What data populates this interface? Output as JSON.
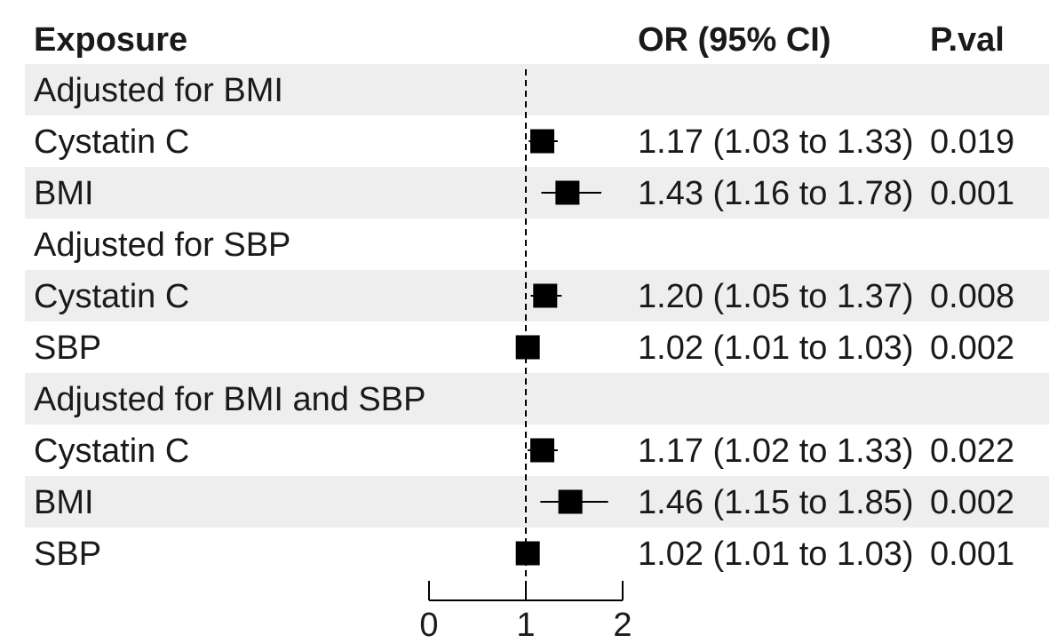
{
  "chart_data": {
    "type": "forest",
    "header": {
      "exposure": "Exposure",
      "or_ci": "OR (95% CI)",
      "pval": "P.val"
    },
    "reference_line": 1,
    "xlim": [
      0,
      2
    ],
    "x_ticks": [
      "0",
      "1",
      "2"
    ],
    "x_tick_values": [
      0,
      1,
      2
    ],
    "colors": {
      "stripe": "#eeeeee",
      "marker": "#000000",
      "text": "#1a1a1a"
    },
    "rows": [
      {
        "label": "Adjusted for BMI",
        "group": true,
        "stripe": true
      },
      {
        "label": "Cystatin C",
        "group": false,
        "stripe": false,
        "or": 1.17,
        "lo": 1.03,
        "hi": 1.33,
        "ci_text": "1.17 (1.03 to 1.33)",
        "pval": "0.019"
      },
      {
        "label": "BMI",
        "group": false,
        "stripe": true,
        "or": 1.43,
        "lo": 1.16,
        "hi": 1.78,
        "ci_text": "1.43 (1.16 to 1.78)",
        "pval": "0.001"
      },
      {
        "label": "Adjusted for SBP",
        "group": true,
        "stripe": false
      },
      {
        "label": "Cystatin C",
        "group": false,
        "stripe": true,
        "or": 1.2,
        "lo": 1.05,
        "hi": 1.37,
        "ci_text": "1.20 (1.05 to 1.37)",
        "pval": "0.008"
      },
      {
        "label": "SBP",
        "group": false,
        "stripe": false,
        "or": 1.02,
        "lo": 1.01,
        "hi": 1.03,
        "ci_text": "1.02 (1.01 to 1.03)",
        "pval": "0.002"
      },
      {
        "label": "Adjusted for BMI and SBP",
        "group": true,
        "stripe": true
      },
      {
        "label": "Cystatin C",
        "group": false,
        "stripe": false,
        "or": 1.17,
        "lo": 1.02,
        "hi": 1.33,
        "ci_text": "1.17 (1.02 to 1.33)",
        "pval": "0.022"
      },
      {
        "label": "BMI",
        "group": false,
        "stripe": true,
        "or": 1.46,
        "lo": 1.15,
        "hi": 1.85,
        "ci_text": "1.46 (1.15 to 1.85)",
        "pval": "0.002"
      },
      {
        "label": "SBP",
        "group": false,
        "stripe": false,
        "or": 1.02,
        "lo": 1.01,
        "hi": 1.03,
        "ci_text": "1.02 (1.01 to 1.03)",
        "pval": "0.001"
      }
    ]
  }
}
